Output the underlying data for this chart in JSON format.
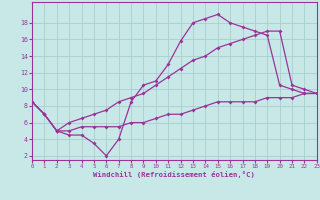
{
  "xlabel": "Windchill (Refroidissement éolien,°C)",
  "bg_color": "#c8e8e8",
  "grid_color": "#a8cece",
  "line_color": "#993399",
  "line1_x": [
    0,
    1,
    2,
    3,
    4,
    5,
    6,
    7,
    8,
    9,
    10,
    11,
    12,
    13,
    14,
    15,
    16,
    17,
    18,
    19,
    20,
    21,
    22,
    23
  ],
  "line1_y": [
    8.5,
    7.0,
    5.0,
    4.5,
    4.5,
    3.5,
    2.0,
    4.0,
    8.5,
    10.5,
    11.0,
    13.0,
    15.8,
    18.0,
    18.5,
    19.0,
    18.0,
    17.5,
    17.0,
    16.5,
    10.5,
    10.0,
    9.5,
    9.5
  ],
  "line2_x": [
    0,
    1,
    2,
    3,
    4,
    5,
    6,
    7,
    8,
    9,
    10,
    11,
    12,
    13,
    14,
    15,
    16,
    17,
    18,
    19,
    20,
    21,
    22,
    23
  ],
  "line2_y": [
    8.5,
    7.0,
    5.0,
    6.0,
    6.5,
    7.0,
    7.5,
    8.5,
    9.0,
    9.5,
    10.5,
    11.5,
    12.5,
    13.5,
    14.0,
    15.0,
    15.5,
    16.0,
    16.5,
    17.0,
    17.0,
    10.5,
    10.0,
    9.5
  ],
  "line3_x": [
    0,
    1,
    2,
    3,
    4,
    5,
    6,
    7,
    8,
    9,
    10,
    11,
    12,
    13,
    14,
    15,
    16,
    17,
    18,
    19,
    20,
    21,
    22,
    23
  ],
  "line3_y": [
    8.5,
    7.0,
    5.0,
    5.0,
    5.5,
    5.5,
    5.5,
    5.5,
    6.0,
    6.0,
    6.5,
    7.0,
    7.0,
    7.5,
    8.0,
    8.5,
    8.5,
    8.5,
    8.5,
    9.0,
    9.0,
    9.0,
    9.5,
    9.5
  ],
  "xlim": [
    0,
    23
  ],
  "ylim": [
    1.5,
    20.5
  ],
  "yticks": [
    2,
    4,
    6,
    8,
    10,
    12,
    14,
    16,
    18
  ],
  "xticks": [
    0,
    1,
    2,
    3,
    4,
    5,
    6,
    7,
    8,
    9,
    10,
    11,
    12,
    13,
    14,
    15,
    16,
    17,
    18,
    19,
    20,
    21,
    22,
    23
  ],
  "marker": "D",
  "marker_size": 2.0,
  "line_width": 0.9
}
